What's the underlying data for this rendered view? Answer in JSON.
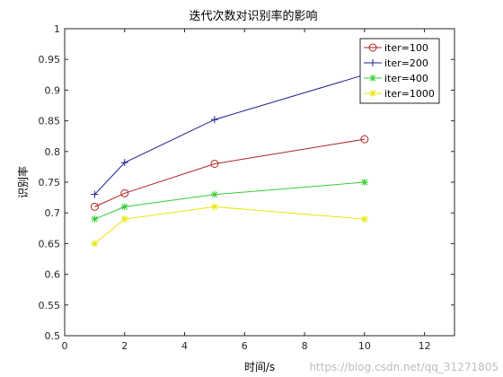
{
  "chart_data": {
    "type": "line",
    "title": "迭代次数对识别率的影响",
    "xlabel": "时间/s",
    "ylabel": "识别率",
    "xlim": [
      0,
      13
    ],
    "ylim": [
      0.5,
      1
    ],
    "xticks": [
      0,
      2,
      4,
      6,
      8,
      10,
      12
    ],
    "yticks": [
      0.5,
      0.55,
      0.6,
      0.65,
      0.7,
      0.75,
      0.8,
      0.85,
      0.9,
      0.95,
      1
    ],
    "xtick_labels": [
      "0",
      "2",
      "4",
      "6",
      "8",
      "10",
      "12"
    ],
    "ytick_labels": [
      "0.5",
      "0.55",
      "0.6",
      "0.65",
      "0.7",
      "0.75",
      "0.8",
      "0.85",
      "0.9",
      "0.95",
      "1"
    ],
    "grid": false,
    "legend_position": "top-right",
    "x": [
      1,
      2,
      5,
      10
    ],
    "series": [
      {
        "name": "iter=100",
        "values": [
          0.71,
          0.732,
          0.78,
          0.82
        ],
        "color": "#b22222",
        "marker": "circle"
      },
      {
        "name": "iter=200",
        "values": [
          0.73,
          0.782,
          0.852,
          0.925
        ],
        "color": "#1f1f8f",
        "marker": "plus"
      },
      {
        "name": "iter=400",
        "values": [
          0.69,
          0.71,
          0.73,
          0.75
        ],
        "color": "#33cc33",
        "marker": "asterisk"
      },
      {
        "name": "iter=1000",
        "values": [
          0.65,
          0.69,
          0.71,
          0.69
        ],
        "color": "#e6e600",
        "marker": "asterisk"
      }
    ]
  },
  "watermark": "https://blog.csdn.net/qq_31271805"
}
